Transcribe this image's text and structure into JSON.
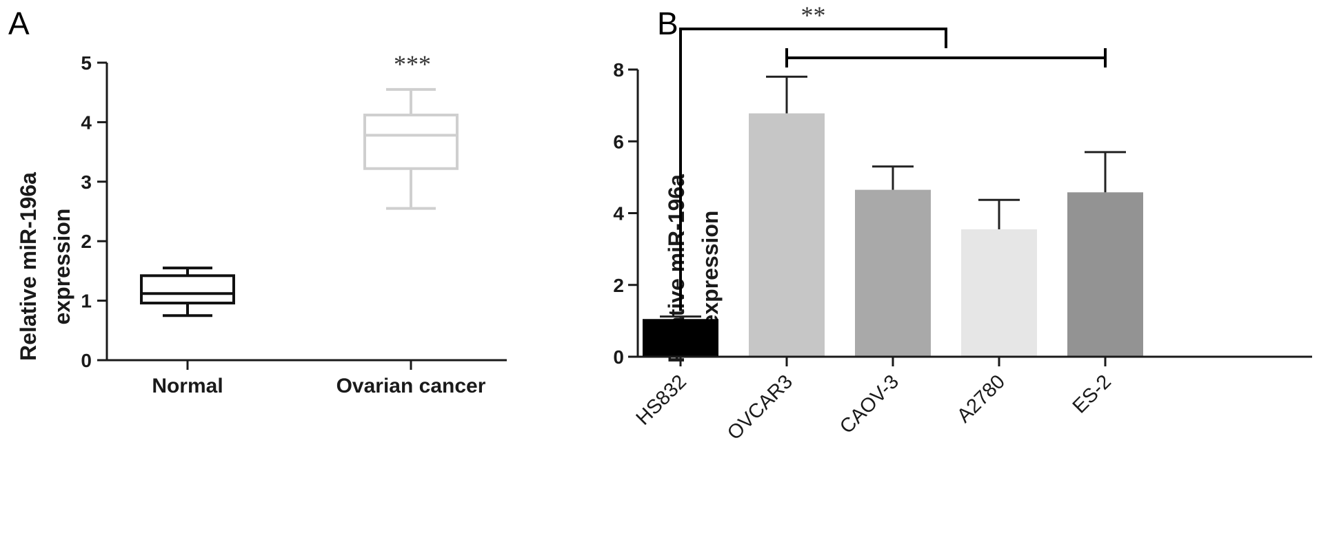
{
  "chart_data": [
    {
      "panel": "A",
      "type": "box",
      "ylabel": [
        "Relative miR-196a",
        "expression"
      ],
      "ylim": [
        0,
        5
      ],
      "yticks": [
        0,
        1,
        2,
        3,
        4,
        5
      ],
      "categories": [
        "Normal",
        "Ovarian cancer"
      ],
      "boxes": [
        {
          "category": "Normal",
          "min": 0.75,
          "q1": 0.96,
          "median": 1.12,
          "q3": 1.42,
          "max": 1.55,
          "color": "#111111",
          "annotation": ""
        },
        {
          "category": "Ovarian cancer",
          "min": 2.55,
          "q1": 3.22,
          "median": 3.78,
          "q3": 4.12,
          "max": 4.55,
          "color": "#cfcfcf",
          "annotation": "***"
        }
      ],
      "grid": false
    },
    {
      "panel": "B",
      "type": "bar",
      "ylabel": [
        "Relative miR-196a",
        "expression"
      ],
      "ylim": [
        0,
        8
      ],
      "yticks": [
        0,
        2,
        4,
        6,
        8
      ],
      "categories": [
        "HS832",
        "OVCAR3",
        "CAOV-3",
        "A2780",
        "ES-2"
      ],
      "values": [
        1.05,
        6.78,
        4.65,
        3.55,
        4.58
      ],
      "errors": [
        0.07,
        1.02,
        0.65,
        0.82,
        1.12
      ],
      "colors": [
        "#000000",
        "#c6c6c6",
        "#a9a9a9",
        "#e6e6e6",
        "#939393"
      ],
      "significance": {
        "label": "**",
        "from": "HS832",
        "to_range": [
          "OVCAR3",
          "ES-2"
        ]
      },
      "grid": false
    }
  ]
}
